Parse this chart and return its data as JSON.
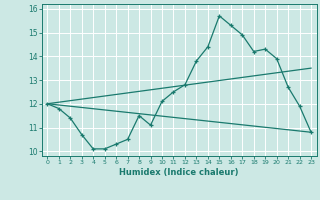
{
  "title": "",
  "xlabel": "Humidex (Indice chaleur)",
  "ylabel": "",
  "bg_color": "#cce8e4",
  "grid_color": "#ffffff",
  "line_color": "#1a7a6e",
  "xlim": [
    -0.5,
    23.5
  ],
  "ylim": [
    9.8,
    16.2
  ],
  "xticks": [
    0,
    1,
    2,
    3,
    4,
    5,
    6,
    7,
    8,
    9,
    10,
    11,
    12,
    13,
    14,
    15,
    16,
    17,
    18,
    19,
    20,
    21,
    22,
    23
  ],
  "yticks": [
    10,
    11,
    12,
    13,
    14,
    15,
    16
  ],
  "series1_x": [
    0,
    1,
    2,
    3,
    4,
    5,
    6,
    7,
    8,
    9,
    10,
    11,
    12,
    13,
    14,
    15,
    16,
    17,
    18,
    19,
    20,
    21,
    22,
    23
  ],
  "series1_y": [
    12.0,
    11.8,
    11.4,
    10.7,
    10.1,
    10.1,
    10.3,
    10.5,
    11.5,
    11.1,
    12.1,
    12.5,
    12.8,
    13.8,
    14.4,
    15.7,
    15.3,
    14.9,
    14.2,
    14.3,
    13.9,
    12.7,
    11.9,
    10.8
  ],
  "series2_x": [
    0,
    23
  ],
  "series2_y": [
    12.0,
    10.8
  ],
  "series3_x": [
    0,
    23
  ],
  "series3_y": [
    12.0,
    13.5
  ]
}
